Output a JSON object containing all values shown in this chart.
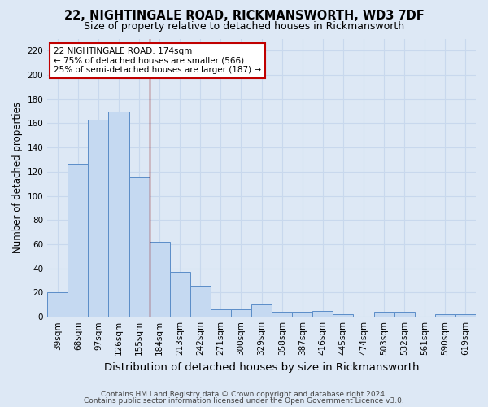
{
  "title1": "22, NIGHTINGALE ROAD, RICKMANSWORTH, WD3 7DF",
  "title2": "Size of property relative to detached houses in Rickmansworth",
  "xlabel": "Distribution of detached houses by size in Rickmansworth",
  "ylabel": "Number of detached properties",
  "categories": [
    "39sqm",
    "68sqm",
    "97sqm",
    "126sqm",
    "155sqm",
    "184sqm",
    "213sqm",
    "242sqm",
    "271sqm",
    "300sqm",
    "329sqm",
    "358sqm",
    "387sqm",
    "416sqm",
    "445sqm",
    "474sqm",
    "503sqm",
    "532sqm",
    "561sqm",
    "590sqm",
    "619sqm"
  ],
  "values": [
    20,
    126,
    163,
    170,
    115,
    62,
    37,
    26,
    6,
    6,
    10,
    4,
    4,
    5,
    2,
    0,
    4,
    4,
    0,
    2,
    2
  ],
  "bar_color": "#c5d9f1",
  "bar_edge_color": "#5b8dc8",
  "bar_linewidth": 0.7,
  "vline_x_idx": 4.5,
  "vline_color": "#8b0000",
  "annotation_text": "22 NIGHTINGALE ROAD: 174sqm\n← 75% of detached houses are smaller (566)\n25% of semi-detached houses are larger (187) →",
  "annotation_box_color": "#ffffff",
  "annotation_box_edgecolor": "#c00000",
  "ylim": [
    0,
    230
  ],
  "yticks": [
    0,
    20,
    40,
    60,
    80,
    100,
    120,
    140,
    160,
    180,
    200,
    220
  ],
  "bg_color": "#dde8f5",
  "grid_color": "#c8d8ed",
  "footer1": "Contains HM Land Registry data © Crown copyright and database right 2024.",
  "footer2": "Contains public sector information licensed under the Open Government Licence v3.0.",
  "title1_fontsize": 10.5,
  "title2_fontsize": 9,
  "xlabel_fontsize": 9.5,
  "ylabel_fontsize": 8.5,
  "tick_fontsize": 7.5,
  "annotation_fontsize": 7.5,
  "footer_fontsize": 6.5
}
